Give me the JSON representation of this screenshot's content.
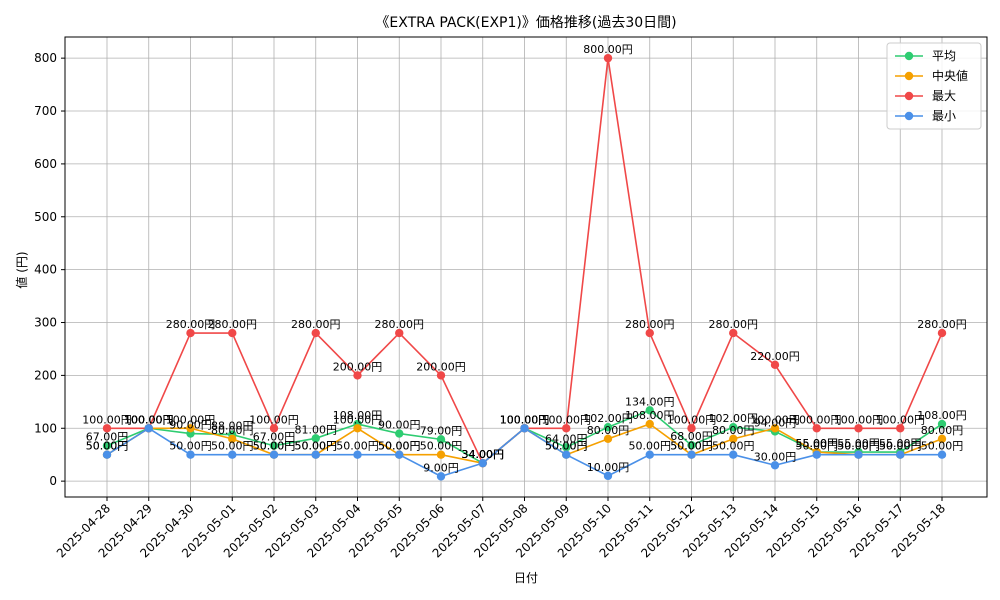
{
  "chart_data": {
    "type": "line",
    "title": "《EXTRA PACK(EXP1)》価格推移(過去30日間)",
    "xlabel": "日付",
    "ylabel": "値 (円)",
    "ylim": [
      -30,
      840
    ],
    "yticks": [
      0,
      100,
      200,
      300,
      400,
      500,
      600,
      700,
      800
    ],
    "grid": true,
    "legend_position": "top-right",
    "value_suffix": "円",
    "categories": [
      "2025-04-28",
      "2025-04-29",
      "2025-04-30",
      "2025-05-01",
      "2025-05-02",
      "2025-05-03",
      "2025-05-04",
      "2025-05-05",
      "2025-05-06",
      "2025-05-07",
      "2025-05-08",
      "2025-05-09",
      "2025-05-10",
      "2025-05-11",
      "2025-05-12",
      "2025-05-13",
      "2025-05-14",
      "2025-05-15",
      "2025-05-16",
      "2025-05-17",
      "2025-05-18"
    ],
    "series": [
      {
        "key": "avg",
        "name": "平均",
        "color": "#2ecc71",
        "values": [
          67,
          100,
          90,
          88,
          67,
          81,
          108,
          90,
          79,
          34,
          100,
          64,
          102,
          134,
          68,
          102,
          94,
          55,
          55,
          55,
          108
        ]
      },
      {
        "key": "median",
        "name": "中央値",
        "color": "#f5a000",
        "values": [
          50,
          100,
          100,
          80,
          50,
          50,
          100,
          50,
          50,
          34,
          100,
          50,
          80,
          108,
          50,
          80,
          100,
          55,
          50,
          50,
          80
        ]
      },
      {
        "key": "max",
        "name": "最大",
        "color": "#f04848",
        "values": [
          100,
          100,
          280,
          280,
          100,
          280,
          200,
          280,
          200,
          34,
          100,
          100,
          800,
          280,
          100,
          280,
          220,
          100,
          100,
          100,
          280
        ]
      },
      {
        "key": "min",
        "name": "最小",
        "color": "#4a90e8",
        "values": [
          50,
          100,
          50,
          50,
          50,
          50,
          50,
          50,
          9,
          34,
          100,
          50,
          10,
          50,
          50,
          50,
          30,
          50,
          50,
          50,
          50
        ]
      }
    ]
  }
}
